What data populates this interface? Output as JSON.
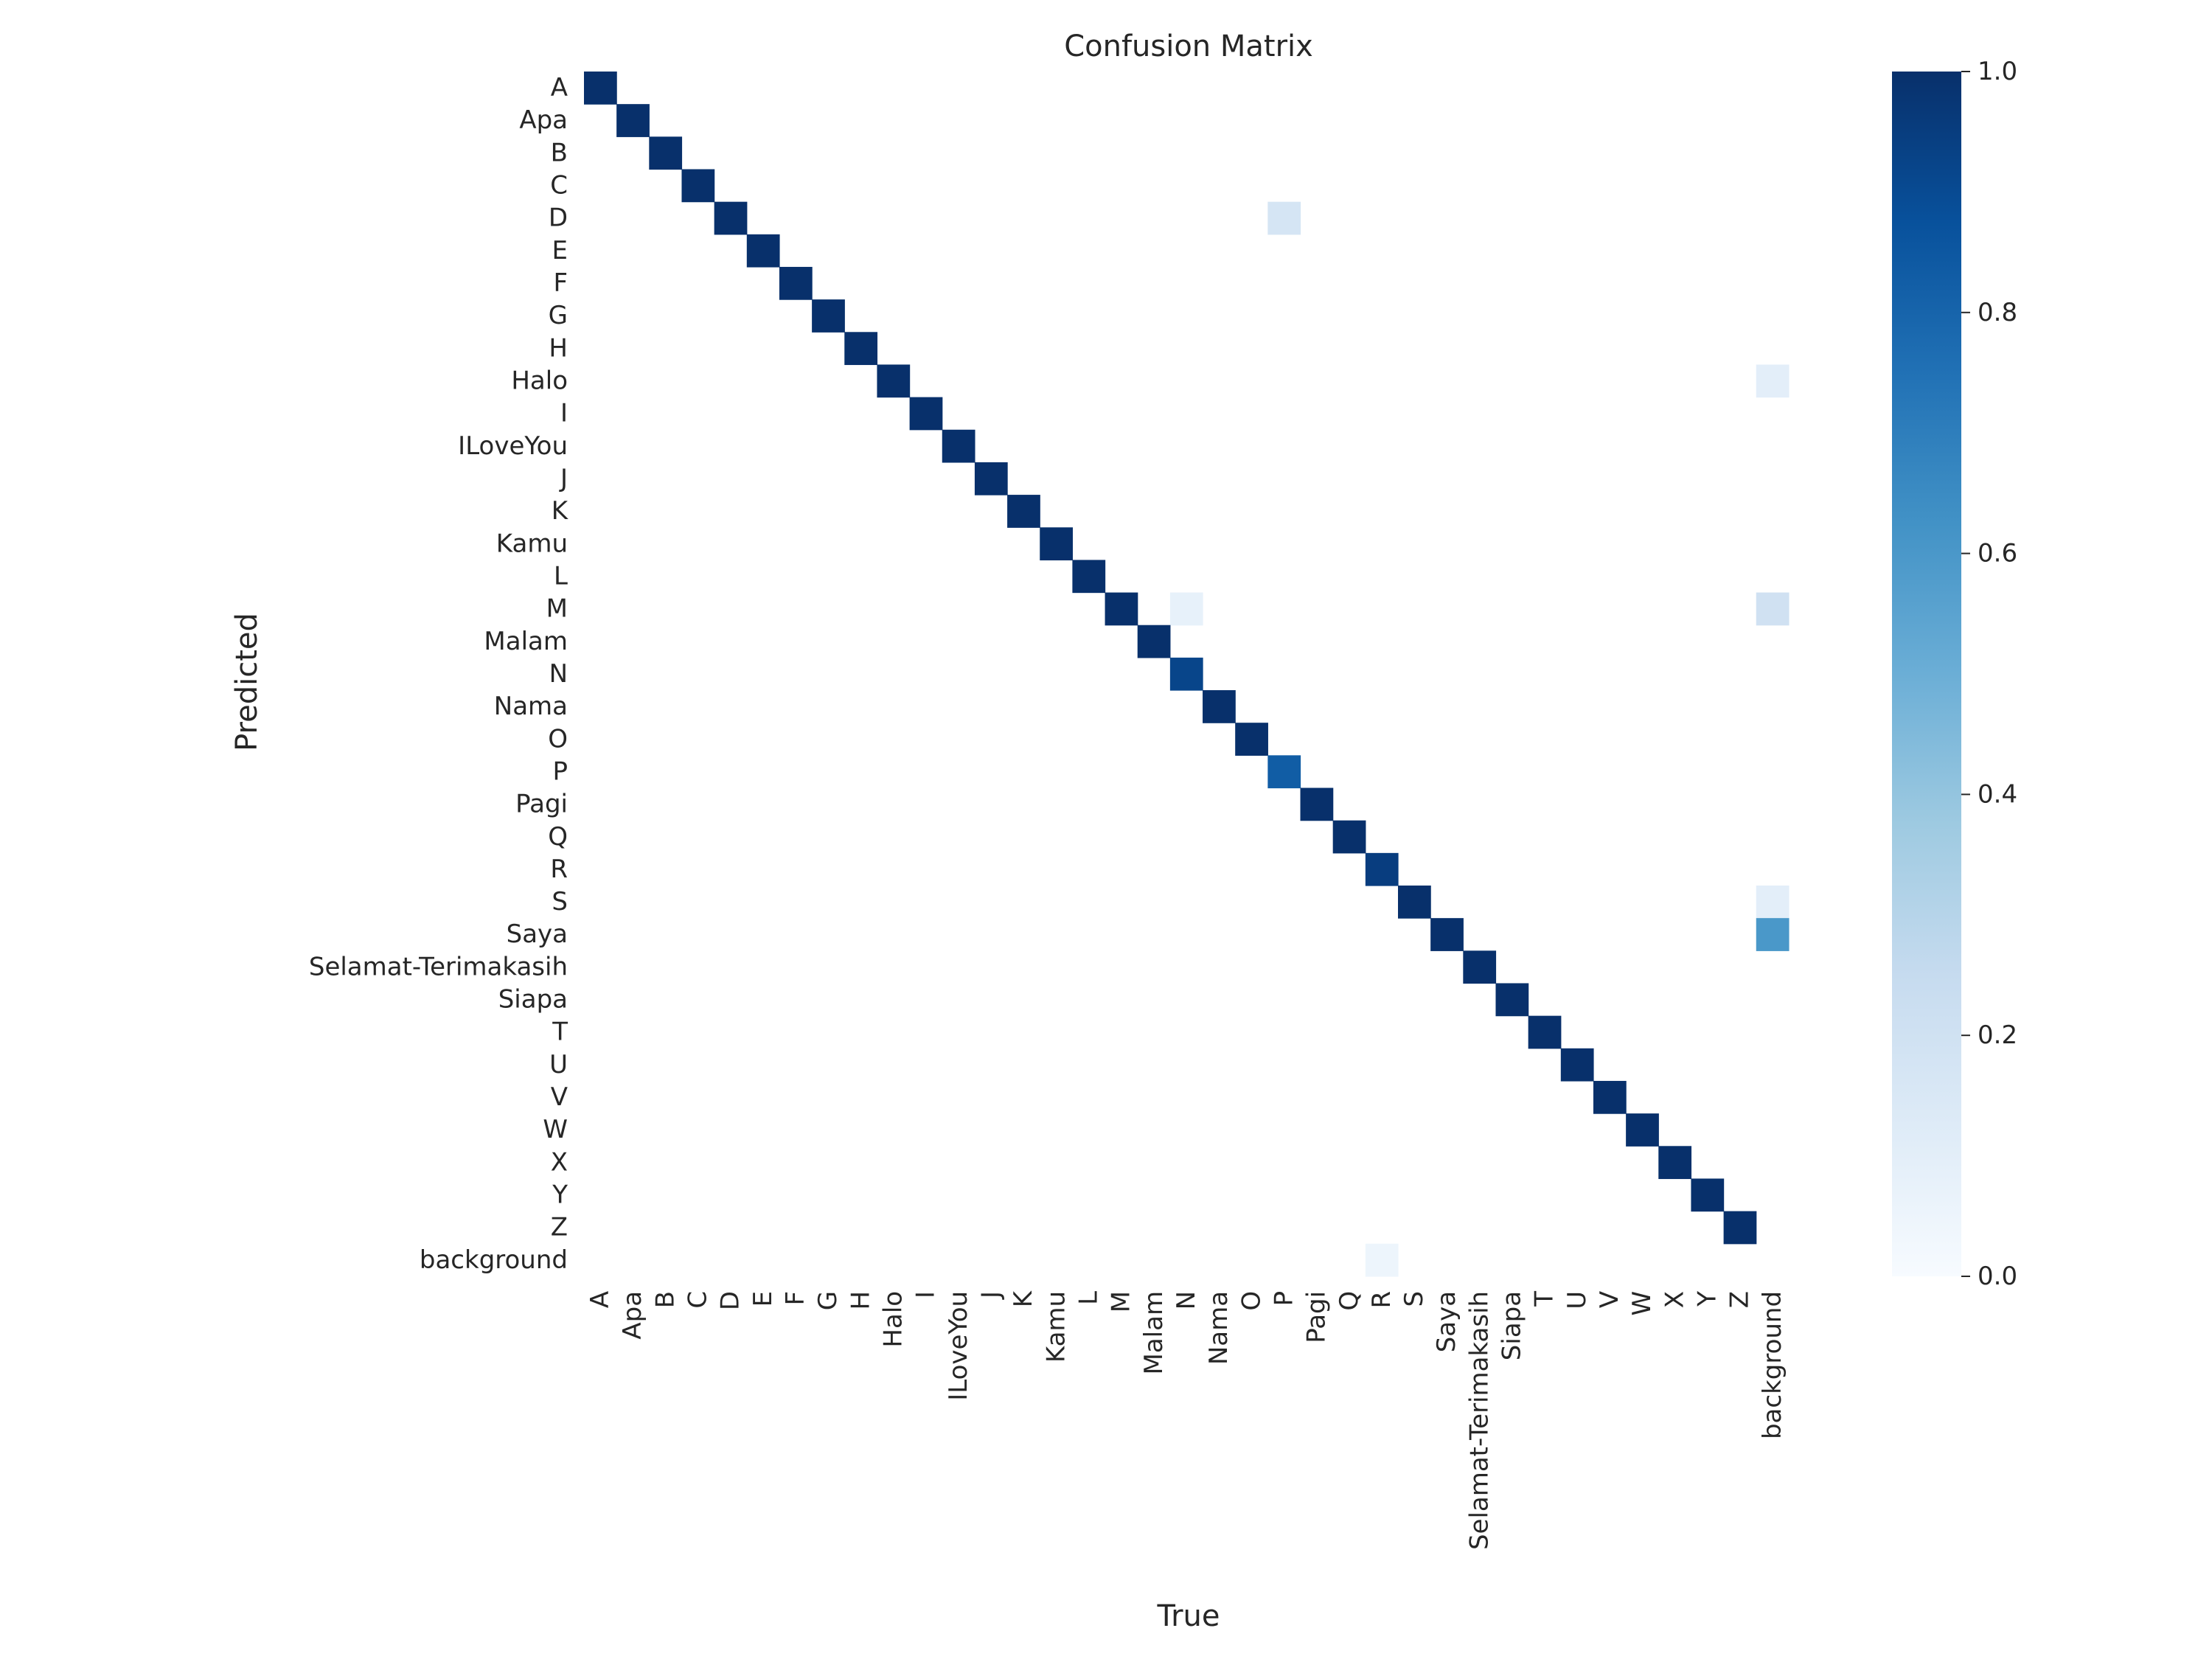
{
  "chart_data": {
    "type": "heatmap",
    "title": "Confusion Matrix",
    "xlabel": "True",
    "ylabel": "Predicted",
    "labels": [
      "A",
      "Apa",
      "B",
      "C",
      "D",
      "E",
      "F",
      "G",
      "H",
      "Halo",
      "I",
      "ILoveYou",
      "J",
      "K",
      "Kamu",
      "L",
      "M",
      "Malam",
      "N",
      "Nama",
      "O",
      "P",
      "Pagi",
      "Q",
      "R",
      "S",
      "Saya",
      "Selamat-Terimakasih",
      "Siapa",
      "T",
      "U",
      "V",
      "W",
      "X",
      "Y",
      "Z",
      "background"
    ],
    "colorbar": {
      "range": [
        0.0,
        1.0
      ],
      "ticks": [
        "0.0",
        "0.2",
        "0.4",
        "0.6",
        "0.8",
        "1.0"
      ],
      "colormap": "Blues"
    },
    "diagonal_default": 1.0,
    "cells": [
      {
        "predicted": "N",
        "true": "N",
        "value": 0.92
      },
      {
        "predicted": "P",
        "true": "P",
        "value": 0.83
      },
      {
        "predicted": "R",
        "true": "R",
        "value": 0.95
      },
      {
        "predicted": "background",
        "true": "background",
        "value": 0.0
      },
      {
        "predicted": "D",
        "true": "P",
        "value": 0.17
      },
      {
        "predicted": "M",
        "true": "N",
        "value": 0.08
      },
      {
        "predicted": "background",
        "true": "R",
        "value": 0.05
      },
      {
        "predicted": "Halo",
        "true": "background",
        "value": 0.1
      },
      {
        "predicted": "M",
        "true": "background",
        "value": 0.2
      },
      {
        "predicted": "S",
        "true": "background",
        "value": 0.1
      },
      {
        "predicted": "Saya",
        "true": "background",
        "value": 0.6
      }
    ],
    "grid": false,
    "legend": "colorbar right"
  }
}
